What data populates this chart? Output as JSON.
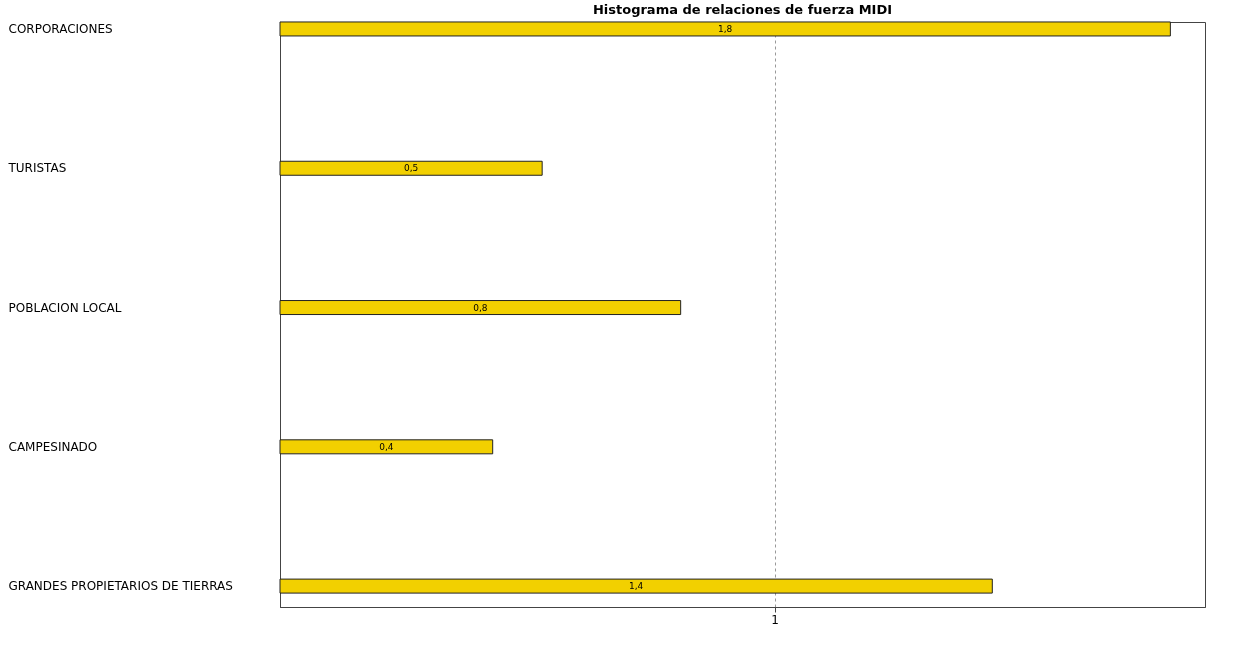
{
  "chart_data": {
    "type": "bar",
    "orientation": "horizontal",
    "title": "Histograma de relaciones de fuerza MIDI",
    "categories": [
      "CORPORACIONES",
      "TURISTAS",
      "POBLACION LOCAL",
      "CAMPESINADO",
      "GRANDES PROPIETARIOS DE TIERRAS"
    ],
    "values": [
      1.8,
      0.53,
      0.81,
      0.43,
      1.44
    ],
    "value_labels": [
      "1,8",
      "0,5",
      "0,8",
      "0,4",
      "1,4"
    ],
    "color": "#f2d000",
    "xlim": [
      0,
      1.87
    ],
    "xticks": [
      1
    ],
    "grid": "x"
  }
}
